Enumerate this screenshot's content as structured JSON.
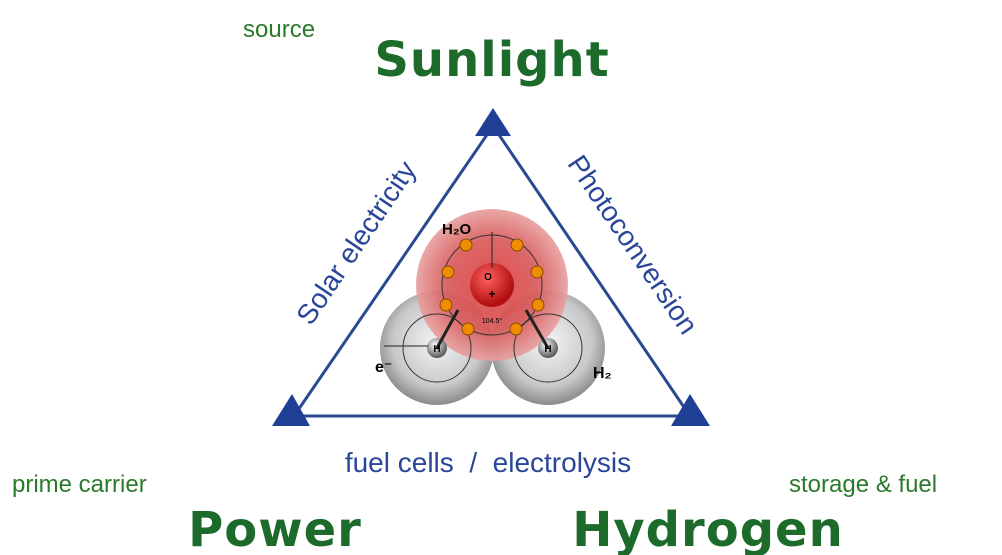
{
  "nodes": [
    {
      "label": "Sunlight",
      "sublabel": "source"
    },
    {
      "label": "Power",
      "sublabel": "prime carrier"
    },
    {
      "label": "Hydrogen",
      "sublabel": "storage & fuel"
    }
  ],
  "edges": [
    {
      "label": "Solar electricity"
    },
    {
      "label": "Photoconversion"
    },
    {
      "label": "fuel cells  /  electrolysis"
    }
  ],
  "molecule": {
    "title": "H₂O",
    "electron": "e⁻",
    "hydrogen_gas": "H₂",
    "oxygen": "O",
    "hydrogen_atoms": [
      "H",
      "H"
    ],
    "nucleus_charge": "+",
    "angle": "104.5°"
  }
}
